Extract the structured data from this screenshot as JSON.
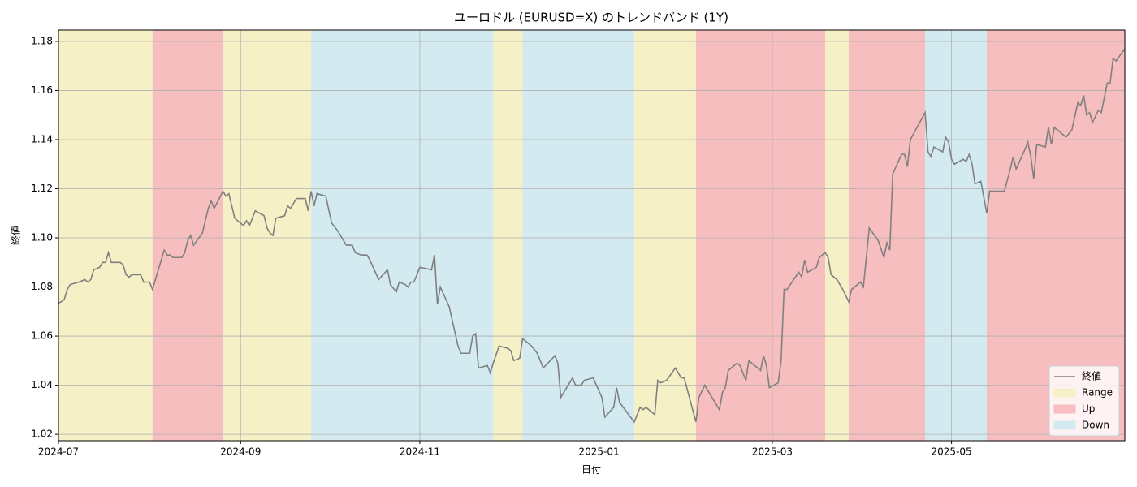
{
  "chart_data": {
    "type": "line",
    "title": "ユーロドル (EURUSD=X) のトレンドバンド (1Y)",
    "x_label": "日付",
    "y_label": "終値",
    "x": [
      0,
      1,
      2,
      3,
      4,
      7,
      9,
      10,
      11,
      12,
      14,
      15,
      16,
      17,
      18,
      21,
      22,
      23,
      24,
      25,
      28,
      29,
      30,
      31,
      32,
      33,
      36,
      37,
      38,
      39,
      42,
      43,
      44,
      45,
      46,
      49,
      50,
      51,
      52,
      53,
      56,
      57,
      58,
      60,
      63,
      64,
      65,
      67,
      70,
      71,
      72,
      73,
      74,
      77,
      78,
      79,
      81,
      84,
      85,
      86,
      87,
      88,
      91,
      93,
      95,
      98,
      100,
      101,
      103,
      105,
      106,
      109,
      112,
      113,
      115,
      116,
      118,
      119,
      120,
      121,
      123,
      127,
      128,
      129,
      130,
      133,
      136,
      137,
      140,
      141,
      142,
      143,
      146,
      147,
      148,
      150,
      153,
      154,
      155,
      157,
      158,
      161,
      163,
      165,
      169,
      170,
      171,
      172,
      175,
      176,
      178,
      179,
      182,
      185,
      186,
      189,
      190,
      191,
      196,
      197,
      198,
      199,
      200,
      203,
      204,
      205,
      207,
      210,
      212,
      213,
      217,
      218,
      220,
      221,
      224,
      225,
      226,
      227,
      228,
      231,
      232,
      234,
      235,
      238,
      239,
      240,
      241,
      242,
      245,
      246,
      247,
      248,
      252,
      253,
      254,
      255,
      258,
      259,
      261,
      262,
      263,
      265,
      267,
      269,
      270,
      273,
      274,
      276,
      279,
      281,
      282,
      283,
      284,
      287,
      288,
      289,
      290,
      295,
      296,
      297,
      298,
      301,
      302,
      303,
      304,
      305,
      308,
      309,
      310,
      311,
      312,
      314,
      316,
      317,
      318,
      319,
      322,
      324,
      325,
      326,
      329,
      330,
      331,
      332,
      333,
      336,
      337,
      338,
      339,
      343,
      345,
      347,
      348,
      349,
      350,
      351,
      352,
      354,
      355,
      357,
      358,
      359,
      360,
      363
    ],
    "series": [
      {
        "name": "終値",
        "color": "#808080",
        "values": [
          1.0735,
          1.074,
          1.075,
          1.079,
          1.081,
          1.082,
          1.083,
          1.082,
          1.083,
          1.087,
          1.088,
          1.09,
          1.09,
          1.094,
          1.09,
          1.09,
          1.089,
          1.085,
          1.084,
          1.085,
          1.085,
          1.082,
          1.082,
          1.082,
          1.079,
          1.083,
          1.095,
          1.093,
          1.093,
          1.092,
          1.092,
          1.094,
          1.099,
          1.101,
          1.097,
          1.102,
          1.107,
          1.112,
          1.115,
          1.112,
          1.119,
          1.117,
          1.118,
          1.108,
          1.105,
          1.107,
          1.105,
          1.111,
          1.109,
          1.104,
          1.102,
          1.101,
          1.108,
          1.109,
          1.113,
          1.112,
          1.116,
          1.116,
          1.111,
          1.119,
          1.113,
          1.118,
          1.117,
          1.106,
          1.103,
          1.097,
          1.097,
          1.094,
          1.093,
          1.093,
          1.091,
          1.083,
          1.087,
          1.081,
          1.078,
          1.082,
          1.081,
          1.08,
          1.082,
          1.082,
          1.088,
          1.087,
          1.093,
          1.073,
          1.08,
          1.072,
          1.056,
          1.053,
          1.053,
          1.06,
          1.061,
          1.047,
          1.048,
          1.045,
          1.049,
          1.056,
          1.055,
          1.054,
          1.05,
          1.051,
          1.059,
          1.056,
          1.053,
          1.047,
          1.052,
          1.049,
          1.035,
          1.037,
          1.043,
          1.04,
          1.04,
          1.042,
          1.043,
          1.035,
          1.027,
          1.031,
          1.039,
          1.033,
          1.025,
          1.028,
          1.031,
          1.03,
          1.031,
          1.028,
          1.042,
          1.041,
          1.042,
          1.047,
          1.043,
          1.043,
          1.025,
          1.035,
          1.04,
          1.038,
          1.032,
          1.03,
          1.037,
          1.039,
          1.046,
          1.049,
          1.048,
          1.042,
          1.05,
          1.047,
          1.046,
          1.052,
          1.048,
          1.039,
          1.041,
          1.05,
          1.079,
          1.079,
          1.086,
          1.084,
          1.091,
          1.086,
          1.088,
          1.092,
          1.094,
          1.092,
          1.085,
          1.083,
          1.079,
          1.074,
          1.079,
          1.082,
          1.08,
          1.104,
          1.099,
          1.092,
          1.098,
          1.095,
          1.126,
          1.134,
          1.134,
          1.129,
          1.14,
          1.151,
          1.135,
          1.133,
          1.137,
          1.135,
          1.141,
          1.139,
          1.132,
          1.13,
          1.132,
          1.131,
          1.134,
          1.13,
          1.122,
          1.123,
          1.11,
          1.119,
          1.119,
          1.119,
          1.119,
          1.128,
          1.133,
          1.128,
          1.136,
          1.139,
          1.133,
          1.124,
          1.138,
          1.137,
          1.145,
          1.138,
          1.145,
          1.141,
          1.144,
          1.155,
          1.154,
          1.158,
          1.15,
          1.151,
          1.147,
          1.152,
          1.151,
          1.163,
          1.163,
          1.173,
          1.172,
          1.177
        ]
      }
    ],
    "regimes": [
      {
        "name": "Range",
        "color": "#f5f0c5",
        "spans": [
          [
            0,
            32
          ],
          [
            56,
            86
          ],
          [
            148,
            158
          ],
          [
            196,
            217
          ],
          [
            261,
            269
          ]
        ]
      },
      {
        "name": "Up",
        "color": "#f7bec0",
        "spans": [
          [
            32,
            56
          ],
          [
            217,
            261
          ],
          [
            269,
            295
          ],
          [
            316,
            363
          ]
        ]
      },
      {
        "name": "Down",
        "color": "#d3eaf0",
        "spans": [
          [
            86,
            148
          ],
          [
            158,
            196
          ],
          [
            295,
            316
          ]
        ]
      }
    ],
    "xlim": [
      0,
      363
    ],
    "xticks": [
      {
        "value": 0,
        "label": "2024-07"
      },
      {
        "value": 62,
        "label": "2024-09"
      },
      {
        "value": 123,
        "label": "2024-11"
      },
      {
        "value": 184,
        "label": "2025-01"
      },
      {
        "value": 243,
        "label": "2025-03"
      },
      {
        "value": 304,
        "label": "2025-05"
      }
    ],
    "ylim": [
      1.0174,
      1.1846
    ],
    "yticks": [
      1.02,
      1.04,
      1.06,
      1.08,
      {
        "value": 1.1,
        "label": "1.10"
      },
      1.12,
      1.14,
      1.16,
      1.18
    ],
    "grid": true,
    "legend": "lower right"
  }
}
